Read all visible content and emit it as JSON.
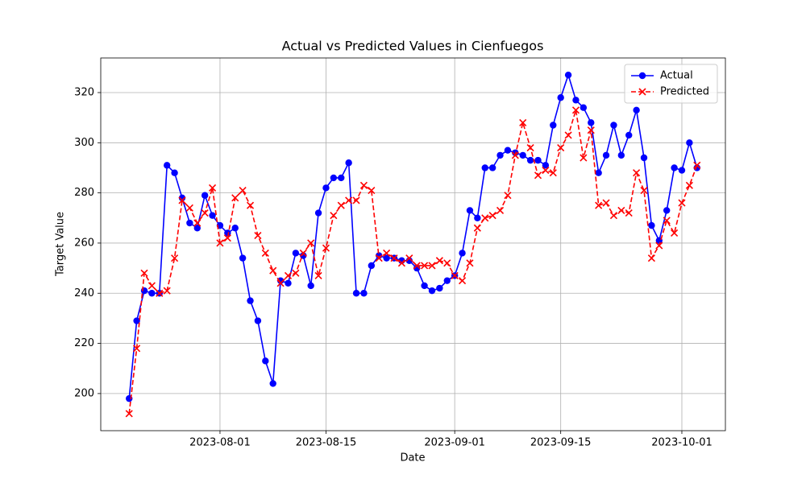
{
  "chart_data": {
    "type": "line",
    "title": "Actual vs Predicted Values in Cienfuegos",
    "xlabel": "Date",
    "ylabel": "Target Value",
    "x": [
      "2023-07-20",
      "2023-07-21",
      "2023-07-22",
      "2023-07-23",
      "2023-07-24",
      "2023-07-25",
      "2023-07-26",
      "2023-07-27",
      "2023-07-28",
      "2023-07-29",
      "2023-07-30",
      "2023-07-31",
      "2023-08-01",
      "2023-08-02",
      "2023-08-03",
      "2023-08-04",
      "2023-08-05",
      "2023-08-06",
      "2023-08-07",
      "2023-08-08",
      "2023-08-09",
      "2023-08-10",
      "2023-08-11",
      "2023-08-12",
      "2023-08-13",
      "2023-08-14",
      "2023-08-15",
      "2023-08-16",
      "2023-08-17",
      "2023-08-18",
      "2023-08-19",
      "2023-08-20",
      "2023-08-21",
      "2023-08-22",
      "2023-08-23",
      "2023-08-24",
      "2023-08-25",
      "2023-08-26",
      "2023-08-27",
      "2023-08-28",
      "2023-08-29",
      "2023-08-30",
      "2023-08-31",
      "2023-09-01",
      "2023-09-02",
      "2023-09-03",
      "2023-09-04",
      "2023-09-05",
      "2023-09-06",
      "2023-09-07",
      "2023-09-08",
      "2023-09-09",
      "2023-09-10",
      "2023-09-11",
      "2023-09-12",
      "2023-09-13",
      "2023-09-14",
      "2023-09-15",
      "2023-09-16",
      "2023-09-17",
      "2023-09-18",
      "2023-09-19",
      "2023-09-20",
      "2023-09-21",
      "2023-09-22",
      "2023-09-23",
      "2023-09-24",
      "2023-09-25",
      "2023-09-26",
      "2023-09-27",
      "2023-09-28",
      "2023-09-29",
      "2023-09-30",
      "2023-10-01",
      "2023-10-02",
      "2023-10-03"
    ],
    "series": [
      {
        "name": "Actual",
        "color": "#0000ff",
        "marker": "o",
        "linestyle": "solid",
        "values": [
          198,
          229,
          241,
          240,
          240,
          291,
          288,
          278,
          268,
          266,
          279,
          271,
          267,
          264,
          266,
          254,
          237,
          229,
          213,
          204,
          245,
          244,
          256,
          255,
          243,
          272,
          282,
          286,
          286,
          292,
          240,
          240,
          251,
          255,
          254,
          254,
          253,
          253,
          250,
          243,
          241,
          242,
          245,
          247,
          256,
          273,
          270,
          290,
          290,
          295,
          297,
          296,
          295,
          293,
          293,
          291,
          307,
          318,
          327,
          317,
          314,
          308,
          288,
          295,
          307,
          295,
          303,
          313,
          294,
          267,
          261,
          273,
          290,
          289,
          300,
          290
        ]
      },
      {
        "name": "Predicted",
        "color": "#ff0000",
        "marker": "x",
        "linestyle": "dashed",
        "values": [
          192,
          218,
          248,
          243,
          240,
          241,
          254,
          277,
          274,
          268,
          272,
          282,
          260,
          262,
          278,
          281,
          275,
          263,
          256,
          249,
          244,
          247,
          248,
          256,
          260,
          247,
          258,
          271,
          275,
          277,
          277,
          283,
          281,
          254,
          256,
          254,
          252,
          254,
          251,
          251,
          251,
          253,
          252,
          247,
          245,
          252,
          266,
          270,
          271,
          273,
          279,
          295,
          308,
          298,
          287,
          289,
          288,
          298,
          303,
          313,
          294,
          305,
          275,
          276,
          271,
          273,
          272,
          288,
          281,
          254,
          259,
          269,
          264,
          276,
          283,
          291
        ]
      }
    ],
    "xlim": [
      "2023-07-16T06:00:00Z",
      "2023-10-06T18:00:00Z"
    ],
    "xticks": [
      "2023-08-01",
      "2023-08-15",
      "2023-09-01",
      "2023-09-15",
      "2023-10-01"
    ],
    "ylim": [
      185.2,
      333.8
    ],
    "yticks": [
      200,
      220,
      240,
      260,
      280,
      300,
      320
    ],
    "grid": true,
    "legend": "upper right"
  }
}
